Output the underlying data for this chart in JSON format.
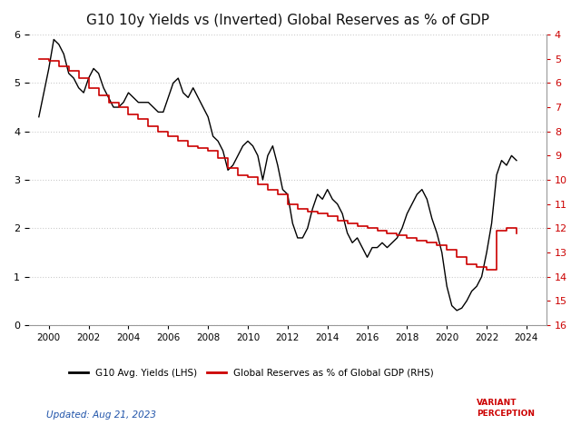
{
  "title": "G10 10y Yields vs (Inverted) Global Reserves as % of GDP",
  "title_fontsize": 11,
  "xlabel": "",
  "ylabel_left": "",
  "ylabel_right": "",
  "lhs_ylim": [
    0,
    6
  ],
  "lhs_yticks": [
    0,
    1,
    2,
    3,
    4,
    5,
    6
  ],
  "rhs_ylim": [
    16,
    4
  ],
  "rhs_yticks": [
    4,
    5,
    6,
    7,
    8,
    9,
    10,
    11,
    12,
    13,
    14,
    15,
    16
  ],
  "xlim_start": 1999.0,
  "xlim_end": 2025.0,
  "xticks": [
    2000,
    2002,
    2004,
    2006,
    2008,
    2010,
    2012,
    2014,
    2016,
    2018,
    2020,
    2022,
    2024
  ],
  "background_color": "#ffffff",
  "grid_color": "#cccccc",
  "line_color_lhs": "#000000",
  "line_color_rhs": "#cc0000",
  "legend_label_lhs": "G10 Avg. Yields (LHS)",
  "legend_label_rhs": "Global Reserves as % of Global GDP (RHS)",
  "updated_text": "Updated: Aug 21, 2023",
  "lhs_data": {
    "years": [
      1999.5,
      1999.75,
      2000.0,
      2000.25,
      2000.5,
      2000.75,
      2001.0,
      2001.25,
      2001.5,
      2001.75,
      2002.0,
      2002.25,
      2002.5,
      2002.75,
      2003.0,
      2003.25,
      2003.5,
      2003.75,
      2004.0,
      2004.25,
      2004.5,
      2004.75,
      2005.0,
      2005.25,
      2005.5,
      2005.75,
      2006.0,
      2006.25,
      2006.5,
      2006.75,
      2007.0,
      2007.25,
      2007.5,
      2007.75,
      2008.0,
      2008.25,
      2008.5,
      2008.75,
      2009.0,
      2009.25,
      2009.5,
      2009.75,
      2010.0,
      2010.25,
      2010.5,
      2010.75,
      2011.0,
      2011.25,
      2011.5,
      2011.75,
      2012.0,
      2012.25,
      2012.5,
      2012.75,
      2013.0,
      2013.25,
      2013.5,
      2013.75,
      2014.0,
      2014.25,
      2014.5,
      2014.75,
      2015.0,
      2015.25,
      2015.5,
      2015.75,
      2016.0,
      2016.25,
      2016.5,
      2016.75,
      2017.0,
      2017.25,
      2017.5,
      2017.75,
      2018.0,
      2018.25,
      2018.5,
      2018.75,
      2019.0,
      2019.25,
      2019.5,
      2019.75,
      2020.0,
      2020.25,
      2020.5,
      2020.75,
      2021.0,
      2021.25,
      2021.5,
      2021.75,
      2022.0,
      2022.25,
      2022.5,
      2022.75,
      2023.0,
      2023.25,
      2023.5
    ],
    "values": [
      4.3,
      4.8,
      5.3,
      5.9,
      5.8,
      5.6,
      5.2,
      5.1,
      4.9,
      4.8,
      5.1,
      5.3,
      5.2,
      4.9,
      4.7,
      4.5,
      4.5,
      4.6,
      4.8,
      4.7,
      4.6,
      4.6,
      4.6,
      4.5,
      4.4,
      4.4,
      4.7,
      5.0,
      5.1,
      4.8,
      4.7,
      4.9,
      4.7,
      4.5,
      4.3,
      3.9,
      3.8,
      3.6,
      3.2,
      3.3,
      3.5,
      3.7,
      3.8,
      3.7,
      3.5,
      3.0,
      3.5,
      3.7,
      3.3,
      2.8,
      2.7,
      2.1,
      1.8,
      1.8,
      2.0,
      2.4,
      2.7,
      2.6,
      2.8,
      2.6,
      2.5,
      2.3,
      1.9,
      1.7,
      1.8,
      1.6,
      1.4,
      1.6,
      1.6,
      1.7,
      1.6,
      1.7,
      1.8,
      2.0,
      2.3,
      2.5,
      2.7,
      2.8,
      2.6,
      2.2,
      1.9,
      1.5,
      0.8,
      0.4,
      0.3,
      0.35,
      0.5,
      0.7,
      0.8,
      1.0,
      1.5,
      2.1,
      3.1,
      3.4,
      3.3,
      3.5,
      3.4
    ]
  },
  "rhs_data": {
    "years": [
      1999.5,
      2000.0,
      2000.5,
      2001.0,
      2001.5,
      2002.0,
      2002.5,
      2003.0,
      2003.5,
      2004.0,
      2004.5,
      2005.0,
      2005.5,
      2006.0,
      2006.5,
      2007.0,
      2007.5,
      2008.0,
      2008.5,
      2009.0,
      2009.5,
      2010.0,
      2010.5,
      2011.0,
      2011.5,
      2012.0,
      2012.5,
      2013.0,
      2013.5,
      2014.0,
      2014.5,
      2015.0,
      2015.5,
      2016.0,
      2016.5,
      2017.0,
      2017.5,
      2018.0,
      2018.5,
      2019.0,
      2019.5,
      2020.0,
      2020.5,
      2021.0,
      2021.5,
      2022.0,
      2022.5,
      2023.0,
      2023.5
    ],
    "values": [
      5.0,
      5.1,
      5.3,
      5.5,
      5.8,
      6.2,
      6.5,
      6.8,
      7.0,
      7.3,
      7.5,
      7.8,
      8.0,
      8.2,
      8.4,
      8.6,
      8.7,
      8.8,
      9.1,
      9.5,
      9.8,
      9.9,
      10.2,
      10.4,
      10.6,
      11.0,
      11.2,
      11.3,
      11.4,
      11.5,
      11.7,
      11.8,
      11.9,
      12.0,
      12.1,
      12.2,
      12.3,
      12.4,
      12.5,
      12.6,
      12.7,
      12.9,
      13.2,
      13.5,
      13.6,
      13.7,
      12.1,
      12.0,
      12.2
    ]
  }
}
